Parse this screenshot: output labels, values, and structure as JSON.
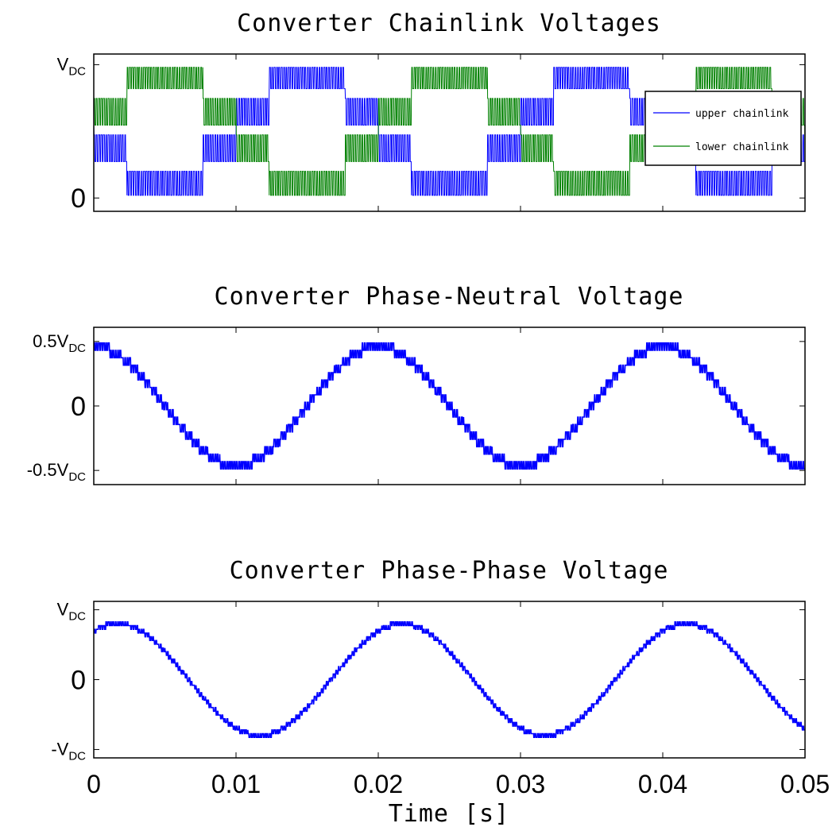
{
  "chart_data": [
    {
      "type": "line",
      "title": "Converter Chainlink Voltages",
      "ytick_labels": [
        {
          "main": "V",
          "sub": "DC"
        },
        {
          "main": "0",
          "sub": ""
        }
      ],
      "yticks": [
        1,
        0
      ],
      "ylim": [
        -0.1,
        1.08
      ],
      "xlim": [
        0,
        0.05
      ],
      "legend": {
        "position": "top-right"
      },
      "fundamental_hz": 50,
      "levels": 4,
      "series": [
        {
          "name": "upper chainlink",
          "color": "#0000ff",
          "phase_deg": 180
        },
        {
          "name": "lower chainlink",
          "color": "#008000",
          "phase_deg": 0
        }
      ]
    },
    {
      "type": "line",
      "title": "Converter Phase-Neutral Voltage",
      "ytick_labels": [
        {
          "main": "0.5V",
          "sub": "DC"
        },
        {
          "main": "0",
          "sub": ""
        },
        {
          "main": "-0.5V",
          "sub": "DC"
        }
      ],
      "yticks": [
        0.5,
        0,
        -0.5
      ],
      "ylim": [
        -0.61,
        0.61
      ],
      "xlim": [
        0,
        0.05
      ],
      "fundamental_hz": 50,
      "levels": 16,
      "amplitude": 0.46,
      "series": [
        {
          "color": "#0000ff",
          "phase_deg": 90
        }
      ]
    },
    {
      "type": "line",
      "title": "Converter Phase-Phase Voltage",
      "ytick_labels": [
        {
          "main": "V",
          "sub": "DC"
        },
        {
          "main": "0",
          "sub": ""
        },
        {
          "main": "-V",
          "sub": "DC"
        }
      ],
      "yticks": [
        1,
        0,
        -1
      ],
      "ylim": [
        -1.12,
        1.12
      ],
      "xlim": [
        0,
        0.05
      ],
      "fundamental_hz": 50,
      "levels": 30,
      "amplitude": 0.8,
      "series": [
        {
          "color": "#0000ff",
          "phase_deg": 60
        }
      ],
      "xticks": [
        0,
        0.01,
        0.02,
        0.03,
        0.04,
        0.05
      ],
      "xtick_labels": [
        "0",
        "0.01",
        "0.02",
        "0.03",
        "0.04",
        "0.05"
      ],
      "xlabel": "Time [s]"
    }
  ]
}
